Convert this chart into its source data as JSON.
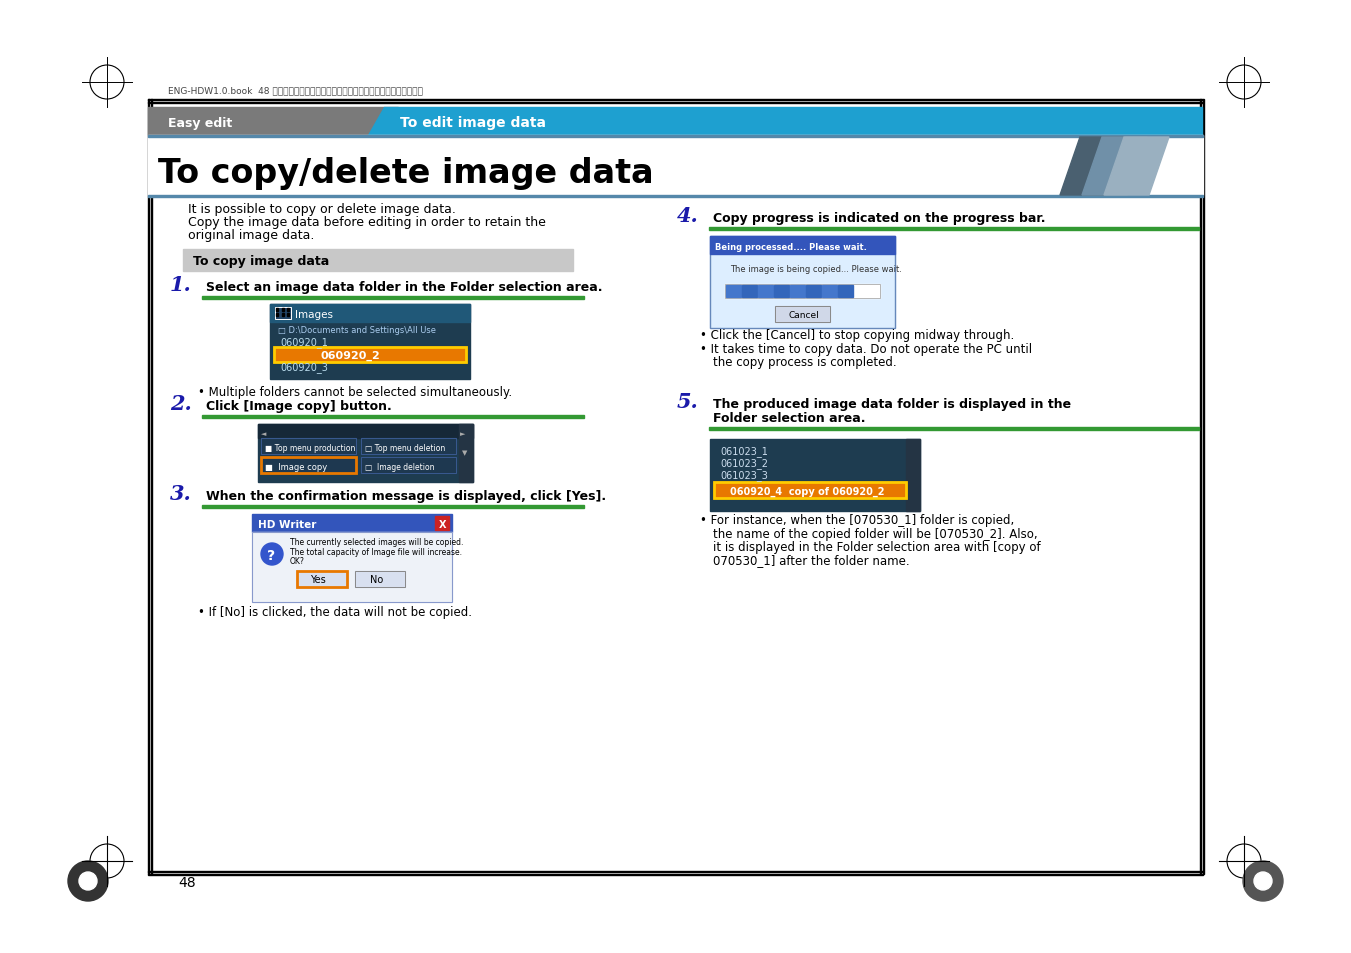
{
  "bg_color": "#ffffff",
  "header_gray_color": "#7a7a7a",
  "header_blue_color": "#1ea0d0",
  "title_text": "To copy/delete image data",
  "easy_edit_text": "Easy edit",
  "header_tab_text": "To edit image data",
  "intro_text1": "It is possible to copy or delete image data.",
  "intro_text2": "Copy the image data before editing in order to retain the",
  "intro_text3": "original image data.",
  "box_label": "To copy image data",
  "box_bg": "#c8c8c8",
  "step1_text": "Select an image data folder in the Folder selection area.",
  "step2_text": "Click [Image copy] button.",
  "step3_text": "When the confirmation message is displayed, click [Yes].",
  "step4_text": "Copy progress is indicated on the progress bar.",
  "step5_text_1": "The produced image data folder is displayed in the",
  "step5_text_2": "Folder selection area.",
  "bullet1": "Multiple folders cannot be selected simultaneously.",
  "bullet2": "If [No] is clicked, the data will not be copied.",
  "bullet3_1": "Click the [Cancel] to stop copying midway through.",
  "bullet3_2": "It takes time to copy data. Do not operate the PC until",
  "bullet3_3": "  the copy process is completed.",
  "bullet5_1": "For instance, when the [070530_1] folder is copied,",
  "bullet5_2": "  the name of the copied folder will be [070530_2]. Also,",
  "bullet5_3": "  it is displayed in the Folder selection area with [copy of",
  "bullet5_4": "  070530_1] after the folder name.",
  "step_color": "#1a1aaa",
  "green_line_color": "#339933",
  "page_num": "48",
  "screen_dark_bg": "#1e3c50",
  "screen_header_bg": "#205878",
  "screen_row_bg": "#1e3c50",
  "orange_hl": "#e87800",
  "yellow_border": "#ffcc00",
  "blue_btn": "#4477bb",
  "dialog_blue_title": "#3355bb",
  "dialog_body_bg": "#eef2f8",
  "progress_blue": "#4477cc",
  "diag1": "#4a6070",
  "diag2": "#7090a8",
  "diag3": "#9ab0c0"
}
